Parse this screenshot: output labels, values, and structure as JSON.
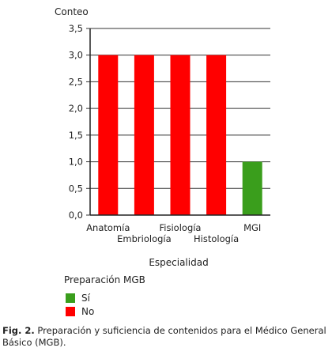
{
  "chart_data": {
    "type": "bar",
    "title": "",
    "ylabel": "Conteo",
    "xlabel": "Especialidad",
    "ylim": [
      0,
      3.5
    ],
    "yticks": [
      "0,0",
      "0,5",
      "1,0",
      "1,5",
      "2,0",
      "2,5",
      "3,0",
      "3,5"
    ],
    "categories": [
      "Anatomía",
      "Embriología",
      "Fisiología",
      "Histología",
      "MGI"
    ],
    "values": [
      3,
      3,
      3,
      3,
      1
    ],
    "bar_series": [
      "No",
      "No",
      "No",
      "No",
      "Sí"
    ],
    "grid": true,
    "legend": {
      "title": "Preparación MGB",
      "placement": "bottom-left",
      "entries": [
        {
          "name": "Sí",
          "color": "#3a9e1c"
        },
        {
          "name": "No",
          "color": "#ff0000"
        }
      ]
    }
  },
  "caption": {
    "label": "Fig. 2.",
    "text": " Preparación y suficiencia de contenidos para el Médico General Básico (MGB)."
  }
}
